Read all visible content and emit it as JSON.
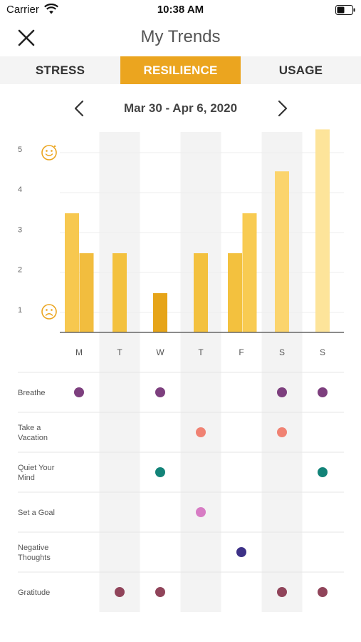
{
  "status_bar": {
    "carrier": "Carrier",
    "time": "10:38 AM"
  },
  "header": {
    "title": "My Trends"
  },
  "tabs": [
    {
      "label": "STRESS",
      "active": false
    },
    {
      "label": "RESILIENCE",
      "active": true
    },
    {
      "label": "USAGE",
      "active": false
    }
  ],
  "date_nav": {
    "range": "Mar 30 - Apr 6, 2020"
  },
  "chart_data": {
    "type": "bar",
    "categories": [
      "M",
      "T",
      "W",
      "T",
      "F",
      "S",
      "S"
    ],
    "bars": [
      [
        3.0,
        2.0
      ],
      [
        2.0
      ],
      [
        1.0
      ],
      [
        2.0
      ],
      [
        2.0,
        3.0
      ],
      [
        4.05
      ],
      [
        5.1
      ]
    ],
    "bar_colors": [
      [
        "#f7c84f",
        "#f2bd3e"
      ],
      [
        "#f3c13e"
      ],
      [
        "#e6a418"
      ],
      [
        "#f3c13e"
      ],
      [
        "#f3c13e",
        "#f8cb52"
      ],
      [
        "#fbd46d"
      ],
      [
        "#fde49a"
      ]
    ],
    "yticks": [
      "1",
      "2",
      "3",
      "4",
      "5"
    ],
    "ylim": [
      0,
      5
    ],
    "grid": true,
    "weekend_shading_columns": [
      1,
      3,
      5
    ],
    "top_face": "happy",
    "bottom_face": "sad"
  },
  "activity_matrix": {
    "rows": [
      {
        "label": "Breathe",
        "days": [
          0,
          2,
          5,
          6
        ],
        "color": "#7d3f7e"
      },
      {
        "label": "Take a\nVacation",
        "days": [
          3,
          5
        ],
        "color": "#f08273"
      },
      {
        "label": "Quiet Your\nMind",
        "days": [
          2,
          6
        ],
        "color": "#128378"
      },
      {
        "label": "Set a Goal",
        "days": [
          3
        ],
        "color": "#d77cc4"
      },
      {
        "label": "Negative\nThoughts",
        "days": [
          4
        ],
        "color": "#3d3187"
      },
      {
        "label": "Gratitude",
        "days": [
          1,
          2,
          5,
          6
        ],
        "color": "#90445a"
      }
    ]
  },
  "colors": {
    "accent": "#eba51f",
    "face": "#eba51f"
  },
  "icons": {
    "close": "close-icon",
    "prev": "chevron-left-icon",
    "next": "chevron-right-icon",
    "wifi": "wifi-icon",
    "battery": "battery-icon"
  }
}
